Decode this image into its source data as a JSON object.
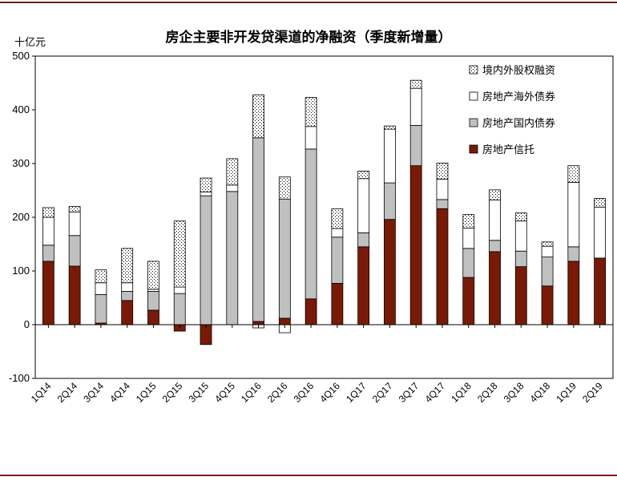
{
  "chart_data": {
    "type": "bar",
    "stacked": true,
    "title": "房企主要非开发贷渠道的净融资（季度新增量）",
    "ylabel": "十亿元",
    "ylim": [
      -100,
      500
    ],
    "yticks": [
      -100,
      0,
      100,
      200,
      300,
      400,
      500
    ],
    "legend_position": "top-right",
    "categories": [
      "1Q14",
      "2Q14",
      "3Q14",
      "4Q14",
      "1Q15",
      "2Q15",
      "3Q15",
      "4Q15",
      "1Q16",
      "2Q16",
      "3Q16",
      "4Q16",
      "1Q17",
      "2Q17",
      "3Q17",
      "4Q17",
      "1Q18",
      "2Q18",
      "3Q18",
      "4Q18",
      "1Q19",
      "2Q19"
    ],
    "series": [
      {
        "name": "房地产信托",
        "color": "#7a1a06",
        "pattern": "solid",
        "values": [
          118,
          109,
          3,
          45,
          27,
          -12,
          -37,
          0,
          6,
          12,
          48,
          77,
          145,
          196,
          296,
          216,
          88,
          136,
          108,
          72,
          118,
          124
        ]
      },
      {
        "name": "房地产国内债券",
        "color": "#c0c0c0",
        "pattern": "solid",
        "values": [
          30,
          57,
          53,
          17,
          35,
          58,
          240,
          248,
          342,
          222,
          279,
          86,
          26,
          68,
          75,
          17,
          54,
          21,
          29,
          54,
          27,
          0
        ]
      },
      {
        "name": "房地产海外债券",
        "color": "#ffffff",
        "pattern": "solid",
        "values": [
          52,
          44,
          22,
          16,
          4,
          12,
          7,
          12,
          -6,
          -15,
          42,
          16,
          101,
          100,
          69,
          38,
          38,
          75,
          56,
          20,
          120,
          95
        ]
      },
      {
        "name": "境内外股权融资",
        "color": "#ffffff",
        "pattern": "dots",
        "values": [
          18,
          10,
          24,
          64,
          52,
          123,
          26,
          49,
          80,
          41,
          54,
          37,
          14,
          6,
          15,
          30,
          25,
          19,
          15,
          8,
          31,
          16
        ]
      }
    ],
    "legend_order": [
      3,
      2,
      1,
      0
    ]
  }
}
